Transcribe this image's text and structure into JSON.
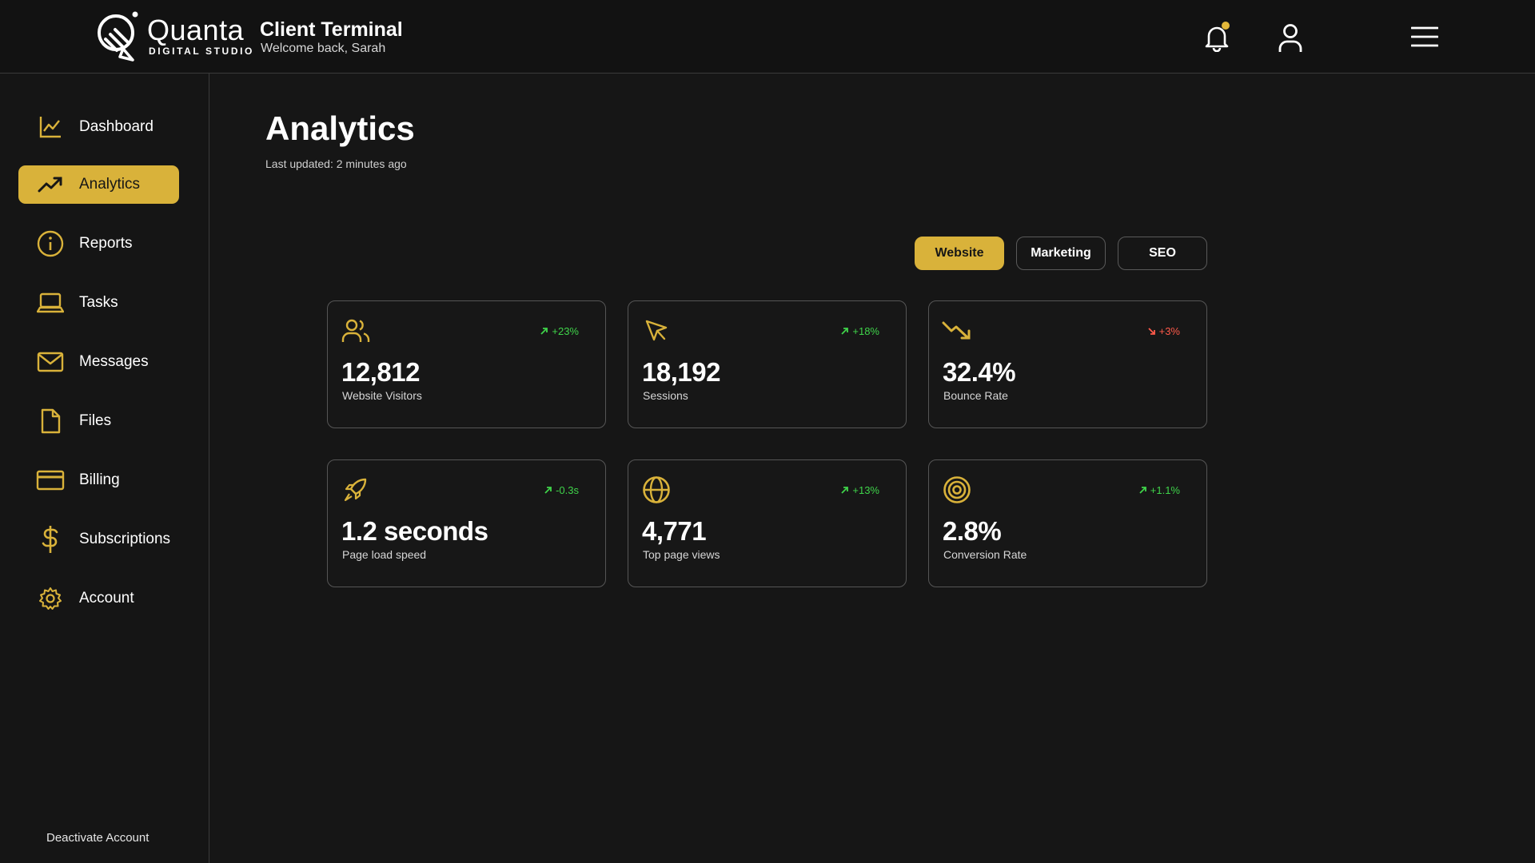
{
  "brand": {
    "name": "Quanta",
    "tagline": "DIGITAL STUDIO"
  },
  "header": {
    "title": "Client Terminal",
    "greeting": "Welcome back, Sarah",
    "icons": [
      "bell-icon",
      "user-icon",
      "hamburger-menu-icon"
    ]
  },
  "sidebar": {
    "items": [
      {
        "label": "Dashboard",
        "icon": "line-chart-icon",
        "active": false
      },
      {
        "label": "Analytics",
        "icon": "trending-up-icon",
        "active": true
      },
      {
        "label": "Reports",
        "icon": "info-circle-icon",
        "active": false
      },
      {
        "label": "Tasks",
        "icon": "laptop-icon",
        "active": false
      },
      {
        "label": "Messages",
        "icon": "mail-icon",
        "active": false
      },
      {
        "label": "Files",
        "icon": "file-icon",
        "active": false
      },
      {
        "label": "Billing",
        "icon": "credit-card-icon",
        "active": false
      },
      {
        "label": "Subscriptions",
        "icon": "dollar-icon",
        "active": false
      },
      {
        "label": "Account",
        "icon": "gear-icon",
        "active": false
      }
    ],
    "deactivate_label": "Deactivate Account"
  },
  "main": {
    "title": "Analytics",
    "updated": "Last updated: 2 minutes ago",
    "tabs": [
      {
        "label": "Website",
        "active": true
      },
      {
        "label": "Marketing",
        "active": false
      },
      {
        "label": "SEO",
        "active": false
      }
    ],
    "cards": [
      {
        "value": "12,812",
        "label": "Website Visitors",
        "delta": "+23%",
        "trend": "up",
        "icon": "users-icon"
      },
      {
        "value": "18,192",
        "label": "Sessions",
        "delta": "+18%",
        "trend": "up",
        "icon": "cursor-icon"
      },
      {
        "value": "32.4%",
        "label": "Bounce Rate",
        "delta": "+3%",
        "trend": "down",
        "icon": "trending-down-icon"
      },
      {
        "value": "1.2 seconds",
        "label": "Page load speed",
        "delta": "-0.3s",
        "trend": "up",
        "icon": "rocket-icon"
      },
      {
        "value": "4,771",
        "label": "Top page views",
        "delta": "+13%",
        "trend": "up",
        "icon": "globe-icon"
      },
      {
        "value": "2.8%",
        "label": "Conversion Rate",
        "delta": "+1.1%",
        "trend": "up",
        "icon": "target-icon"
      }
    ]
  },
  "colors": {
    "accent": "#d9b23a",
    "background": "#161616",
    "positive": "#3fd44a",
    "negative": "#ff5a4a"
  }
}
